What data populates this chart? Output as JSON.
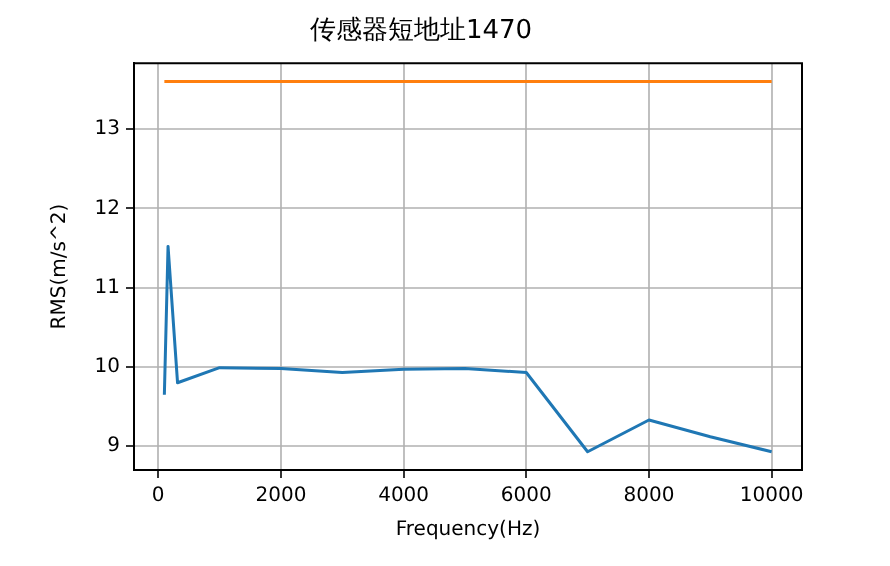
{
  "chart_data": {
    "type": "line",
    "title": "传感器短地址1470",
    "xlabel": "Frequency(Hz)",
    "ylabel": "RMS(m/s^2)",
    "series": [
      {
        "color": "#1f77b4",
        "x": [
          100,
          160,
          315,
          1000,
          2000,
          3000,
          4000,
          5000,
          6000,
          7000,
          8000,
          9000,
          10000
        ],
        "values": [
          9.65,
          11.52,
          9.8,
          9.99,
          9.98,
          9.93,
          9.97,
          9.98,
          9.93,
          8.93,
          9.33,
          9.12,
          8.93
        ]
      },
      {
        "color": "#ff7f0e",
        "x": [
          100,
          10000
        ],
        "values": [
          13.6,
          13.6
        ]
      }
    ],
    "xlim": [
      -395,
      10495
    ],
    "xticks": [
      0,
      2000,
      4000,
      6000,
      8000,
      10000
    ],
    "ylim": [
      8.7,
      13.83
    ],
    "yticks": [
      9,
      10,
      11,
      12,
      13
    ],
    "grid": true,
    "legend": false,
    "marker": "none",
    "line_style": "solid"
  }
}
